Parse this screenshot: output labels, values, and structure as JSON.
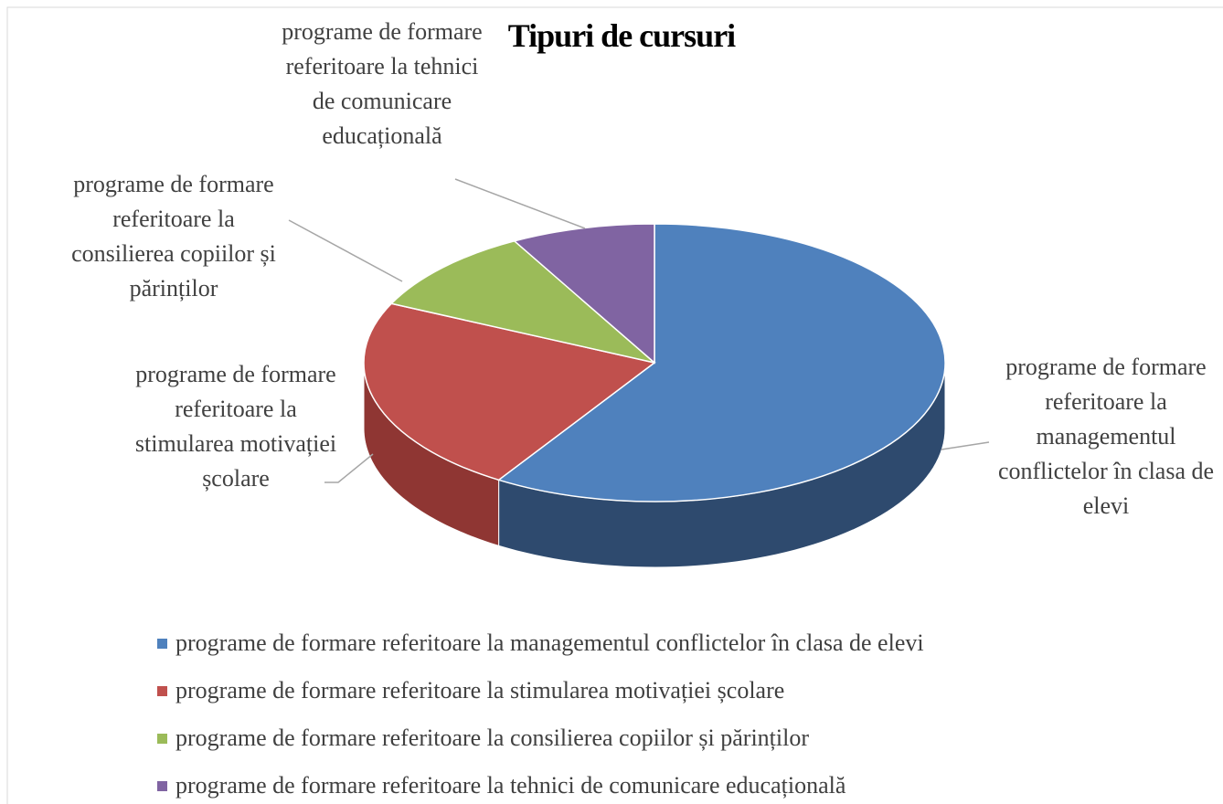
{
  "chart_data": {
    "type": "pie3d",
    "title": "Tipuri de cursuri",
    "categories": [
      "programe de formare referitoare la managementul conflictelor în clasa de elevi",
      "programe de formare referitoare la stimularea motivației școlare",
      "programe de formare referitoare la consilierea copiilor și părinților",
      "programe de formare referitoare la tehnici de comunicare educațională"
    ],
    "values": [
      59,
      23,
      10,
      8
    ],
    "colors": [
      "#4f81bd",
      "#c0504d",
      "#9bbb59",
      "#8064a2"
    ],
    "side_colors": [
      "#2e4a6e",
      "#8f3633",
      "#6f8a3c",
      "#5a4576"
    ],
    "legend": "bottom"
  }
}
